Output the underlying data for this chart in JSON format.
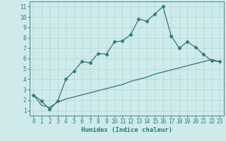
{
  "xlabel": "Humidex (Indice chaleur)",
  "x_values": [
    0,
    1,
    2,
    3,
    4,
    5,
    6,
    7,
    8,
    9,
    10,
    11,
    12,
    13,
    14,
    15,
    16,
    17,
    18,
    19,
    20,
    21,
    22,
    23
  ],
  "line1_y": [
    2.5,
    1.9,
    1.1,
    1.9,
    4.0,
    4.8,
    5.7,
    5.6,
    6.5,
    6.4,
    7.6,
    7.7,
    8.3,
    9.8,
    9.6,
    10.3,
    11.0,
    8.2,
    7.0,
    7.6,
    7.1,
    6.4,
    5.8,
    5.7
  ],
  "line2_y": [
    2.5,
    1.5,
    1.3,
    1.8,
    2.1,
    2.3,
    2.5,
    2.7,
    2.9,
    3.1,
    3.3,
    3.5,
    3.8,
    4.0,
    4.2,
    4.5,
    4.7,
    4.9,
    5.1,
    5.3,
    5.5,
    5.7,
    5.9,
    5.7
  ],
  "line_color": "#2d7a6e",
  "marker": "D",
  "marker_size": 2.5,
  "bg_color": "#ceeaea",
  "grid_color": "#b8d8d8",
  "xlim": [
    -0.5,
    23.5
  ],
  "ylim": [
    0.5,
    11.5
  ],
  "yticks": [
    1,
    2,
    3,
    4,
    5,
    6,
    7,
    8,
    9,
    10,
    11
  ],
  "xticks": [
    0,
    1,
    2,
    3,
    4,
    5,
    6,
    7,
    8,
    9,
    10,
    11,
    12,
    13,
    14,
    15,
    16,
    17,
    18,
    19,
    20,
    21,
    22,
    23
  ],
  "tick_fontsize": 5.5,
  "xlabel_fontsize": 6.5
}
